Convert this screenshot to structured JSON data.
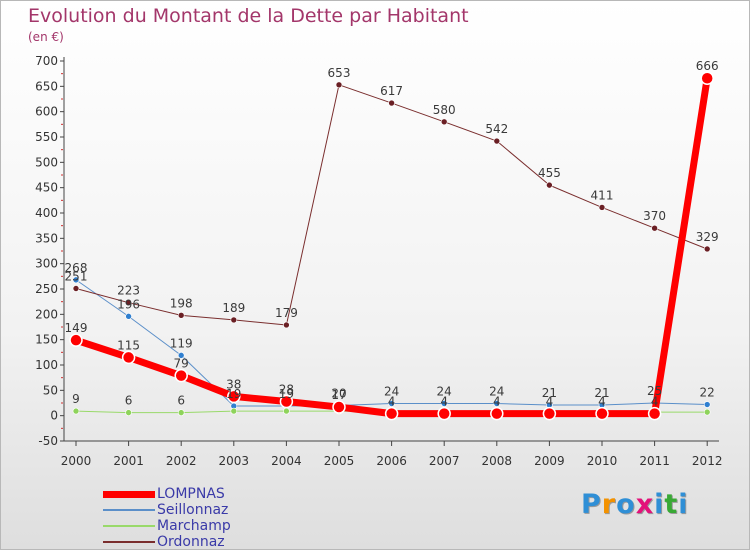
{
  "title": "Evolution du Montant de la Dette par Habitant",
  "subtitle": "(en €)",
  "logo": {
    "text": "Proxiti",
    "colors": [
      "#2f8fd6",
      "#f39200",
      "#2f8fd6",
      "#e3127a",
      "#2f8fd6",
      "#39a935",
      "#2f8fd6"
    ]
  },
  "colors": {
    "title": "#a3366a",
    "axis": "#444444",
    "tick_label": "#333333",
    "legend_text": "#3a3aa8"
  },
  "chart_data": {
    "type": "line",
    "x": [
      "2000",
      "2001",
      "2002",
      "2003",
      "2004",
      "2005",
      "2006",
      "2007",
      "2008",
      "2009",
      "2010",
      "2011",
      "2012"
    ],
    "ylim": [
      -50,
      700
    ],
    "yticks": [
      "-50",
      "0",
      "50",
      "100",
      "150",
      "200",
      "250",
      "300",
      "350",
      "400",
      "450",
      "500",
      "550",
      "600",
      "650",
      "700"
    ],
    "grid": false,
    "legend_position": "bottom-left",
    "series": [
      {
        "name": "LOMPNAS",
        "color": "#ff0000",
        "line_width": 7,
        "marker_radius": 6,
        "marker_fill": "#ff0000",
        "values": [
          149,
          115,
          79,
          38,
          28,
          17,
          4,
          4,
          4,
          4,
          4,
          4,
          666
        ],
        "labels": [
          "149",
          "115",
          "79",
          "38",
          "28",
          "17",
          "4",
          "4",
          "4",
          "4",
          "4",
          "4",
          "666"
        ]
      },
      {
        "name": "Seillonnaz",
        "color": "#5b8fc9",
        "line_width": 1,
        "marker_radius": 3,
        "marker_fill": "#2f7fd0",
        "values": [
          268,
          196,
          119,
          19,
          19,
          20,
          24,
          24,
          24,
          21,
          21,
          25,
          22
        ],
        "labels": [
          "268",
          "196",
          "119",
          "19",
          "19",
          "20",
          "24",
          "24",
          "24",
          "21",
          "21",
          "25",
          "22"
        ]
      },
      {
        "name": "Marchamp",
        "color": "#99d96a",
        "line_width": 1,
        "marker_radius": 3,
        "marker_fill": "#8ed35b",
        "values": [
          9,
          6,
          6,
          9,
          9,
          9,
          8,
          8,
          8,
          8,
          8,
          7,
          7
        ],
        "labels": [
          "9",
          "6",
          "6",
          "",
          "",
          "",
          "",
          "",
          "",
          "",
          "",
          "",
          ""
        ]
      },
      {
        "name": "Ordonnaz",
        "color": "#7a2e2e",
        "line_width": 1,
        "marker_radius": 3,
        "marker_fill": "#6a1f24",
        "values": [
          251,
          223,
          198,
          189,
          179,
          653,
          617,
          580,
          542,
          455,
          411,
          370,
          329
        ],
        "labels": [
          "251",
          "223",
          "198",
          "189",
          "179",
          "653",
          "617",
          "580",
          "542",
          "455",
          "411",
          "370",
          "329"
        ]
      }
    ]
  }
}
